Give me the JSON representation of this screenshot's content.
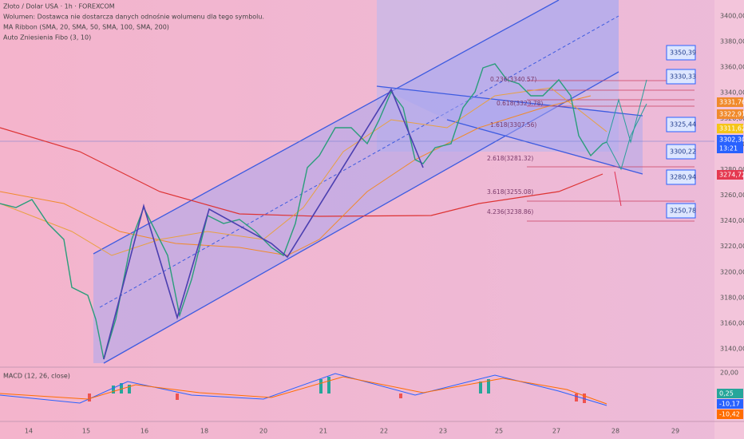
{
  "header": {
    "title": "Złoto / Dolar USA · 1h · FOREXCOM",
    "volume": "Wolumen: Dostawca nie dostarcza danych odnośnie wolumenu dla tego symbolu.",
    "ma_ribbon": "MA Ribbon (SMA, 20, SMA, 50, SMA, 100, SMA, 200)",
    "fibo": "Auto Zniesienia Fibo (3, 10)"
  },
  "price_axis": {
    "labels": [
      "3400,00",
      "3380,00",
      "3360,00",
      "3340,00",
      "3320,00",
      "3300,00",
      "3280,00",
      "3260,00",
      "3240,00",
      "3220,00",
      "3200,00",
      "3180,00",
      "3160,00",
      "3140,00"
    ]
  },
  "price_tags": [
    "3331,76",
    "3322,91",
    "3311,62",
    "3302,30",
    "13:21",
    "3274,72"
  ],
  "targets": [
    "3350,39",
    "3330,33",
    "3325,44",
    "3300,22",
    "3280,94",
    "3250,78"
  ],
  "fib_levels": [
    "0.236(3340.57)",
    "0.618(3323.78)",
    "1.618(3307.56)",
    "2.618(3281.32)",
    "3.618(3255.08)",
    "4.236(3238.86)"
  ],
  "time_axis": {
    "labels": [
      "14",
      "15",
      "16",
      "18",
      "20",
      "21",
      "22",
      "23",
      "25",
      "27",
      "28",
      "29"
    ]
  },
  "macd": {
    "title": "MACD (12, 26, close)",
    "axis_label": "20,00",
    "tags": [
      "0,25",
      "-10,17",
      "-10,42"
    ]
  }
}
